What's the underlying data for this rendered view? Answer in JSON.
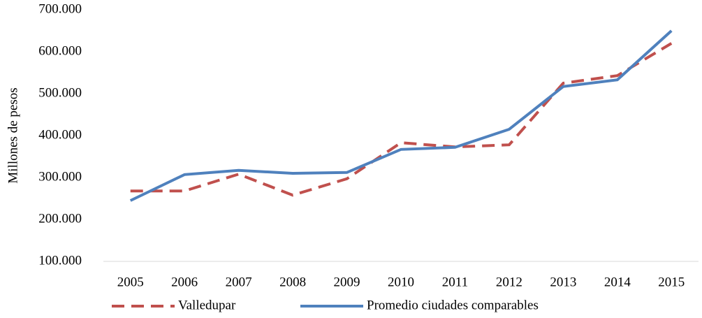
{
  "chart_data": {
    "type": "line",
    "y_label": "Millones de pesos",
    "categories": [
      "2005",
      "2006",
      "2007",
      "2008",
      "2009",
      "2010",
      "2011",
      "2012",
      "2013",
      "2014",
      "2015"
    ],
    "series": [
      {
        "name": "Valledupar",
        "color": "#c0504d",
        "dashed": true,
        "values": [
          268000,
          268000,
          308000,
          258000,
          297000,
          383000,
          373000,
          378000,
          525000,
          543000,
          620000
        ]
      },
      {
        "name": "Promedio ciudades comparables",
        "color": "#4f81bd",
        "dashed": false,
        "values": [
          245000,
          307000,
          317000,
          310000,
          312000,
          367000,
          372000,
          415000,
          517000,
          533000,
          650000
        ]
      }
    ],
    "ylim": [
      100000,
      700000
    ],
    "yticks": [
      {
        "value": 100000,
        "label": "100.000"
      },
      {
        "value": 200000,
        "label": "200.000"
      },
      {
        "value": 300000,
        "label": "300.000"
      },
      {
        "value": 400000,
        "label": "400.000"
      },
      {
        "value": 500000,
        "label": "500.000"
      },
      {
        "value": 600000,
        "label": "600.000"
      },
      {
        "value": 700000,
        "label": "700.000"
      }
    ],
    "grid": false,
    "legend": "bottom"
  }
}
